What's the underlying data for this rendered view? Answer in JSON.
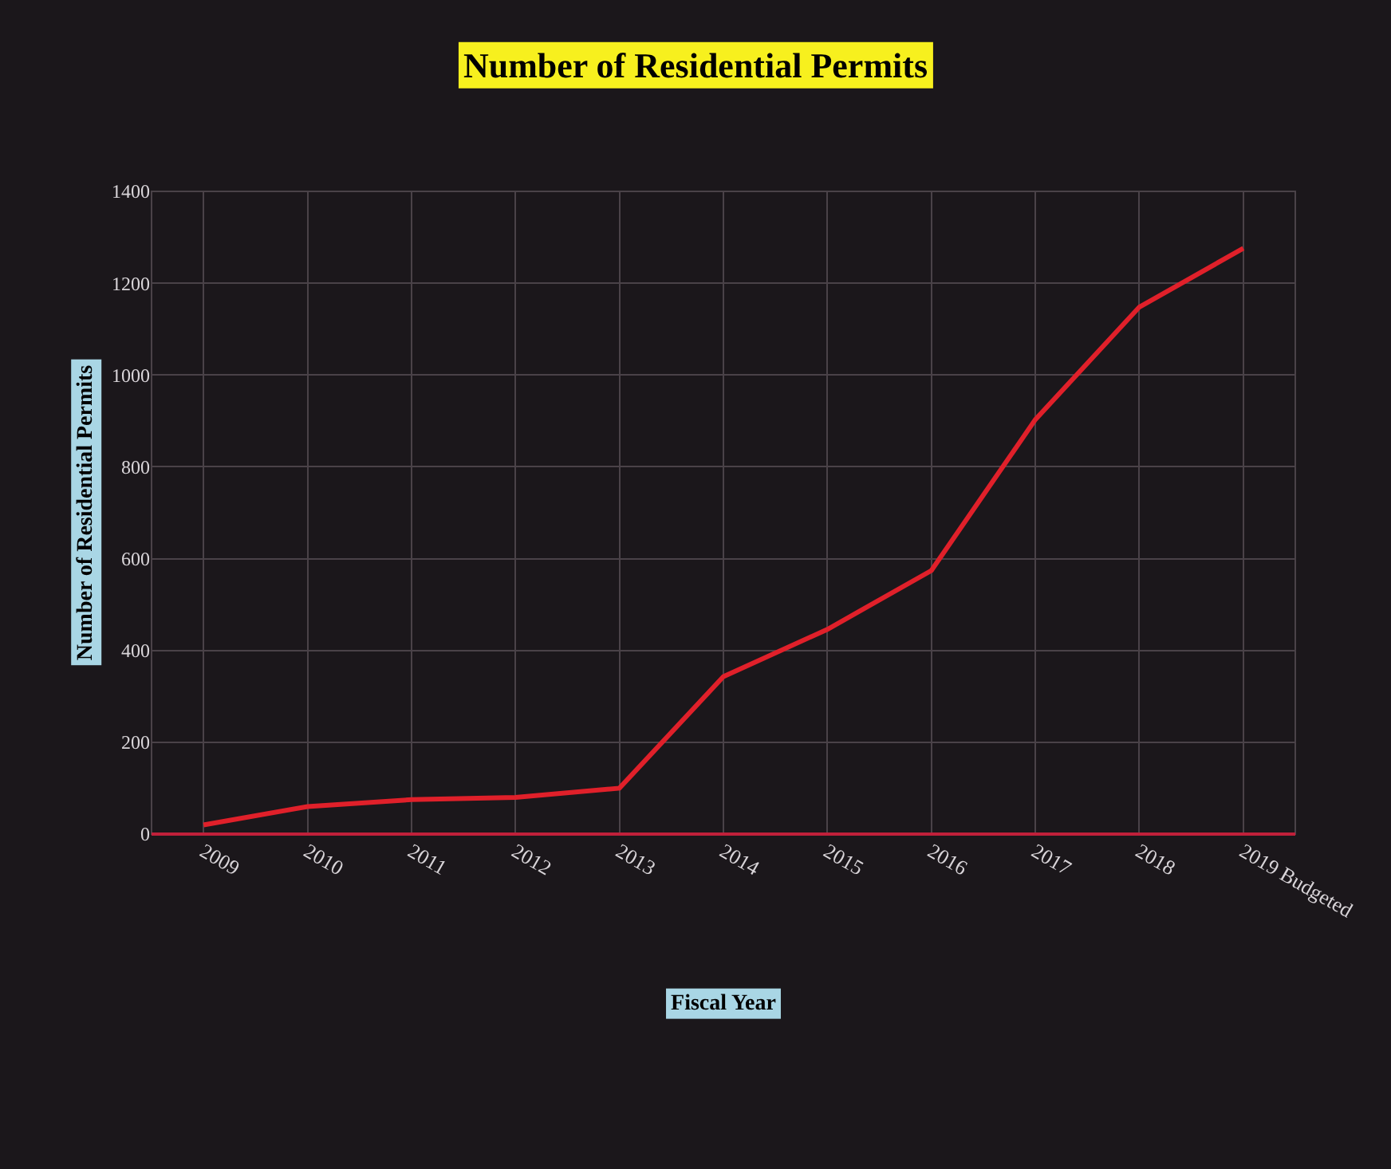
{
  "chart_data": {
    "type": "line",
    "title": "Number of Residential Permits",
    "xlabel": "Fiscal Year",
    "ylabel": "Number of Residential Permits",
    "categories": [
      "2009",
      "2010",
      "2011",
      "2012",
      "2013",
      "2014",
      "2015",
      "2016",
      "2017",
      "2018",
      "2019 Budgeted"
    ],
    "series": [
      {
        "color": "#e0202a",
        "values": [
          20,
          60,
          75,
          80,
          100,
          343,
          446,
          574,
          903,
          1148,
          1276
        ]
      }
    ],
    "ylim": [
      0,
      1400
    ],
    "yticks": [
      0,
      200,
      400,
      600,
      800,
      1000,
      1200,
      1400
    ],
    "grid": true,
    "marker": "none",
    "line_style": "solid"
  }
}
